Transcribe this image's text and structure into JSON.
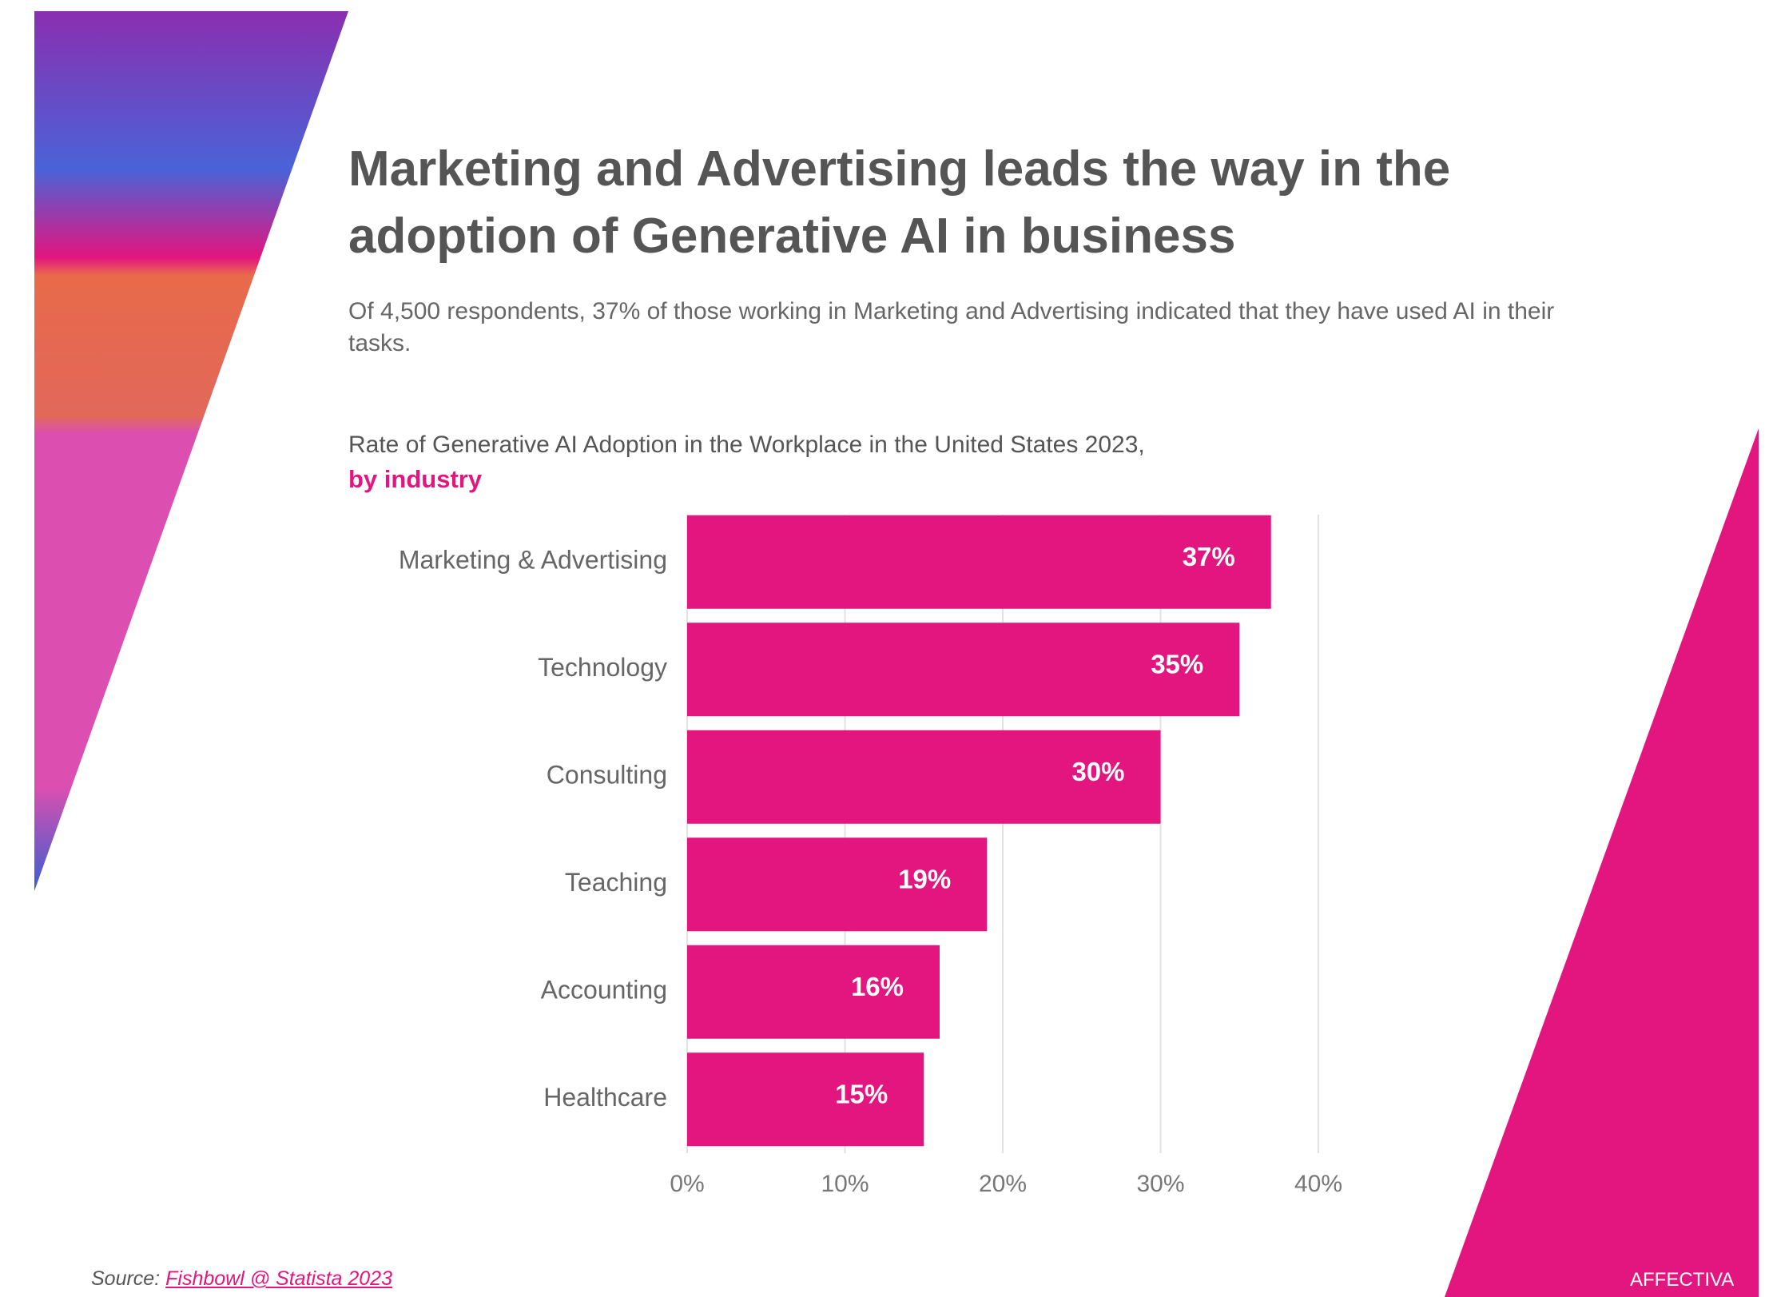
{
  "chart_data": {
    "type": "bar",
    "orientation": "horizontal",
    "title": "Marketing and Advertising leads the way in the adoption of Generative AI in business",
    "subtitle": "Of 4,500 respondents, 37% of those working in Marketing and Advertising indicated that they have used AI in their tasks.",
    "chart_title": "Rate of Generative AI Adoption in the Workplace in the United States 2023,",
    "chart_subtitle": "by industry",
    "categories": [
      "Marketing & Advertising",
      "Technology",
      "Consulting",
      "Teaching",
      "Accounting",
      "Healthcare"
    ],
    "values": [
      37,
      35,
      30,
      19,
      16,
      15
    ],
    "value_labels": [
      "37%",
      "35%",
      "30%",
      "19%",
      "16%",
      "15%"
    ],
    "color": "#e3157f",
    "xlim": [
      0,
      40
    ],
    "xticks": [
      {
        "value": 0,
        "label": "0%"
      },
      {
        "value": 10,
        "label": "10%"
      },
      {
        "value": 20,
        "label": "20%"
      },
      {
        "value": 30,
        "label": "30%"
      },
      {
        "value": 40,
        "label": "40%"
      }
    ],
    "grid": true
  },
  "footer": {
    "source_prefix": "Source:",
    "source_link": "Fishbowl @ Statista 2023",
    "brand": "AFFECTIVA"
  }
}
